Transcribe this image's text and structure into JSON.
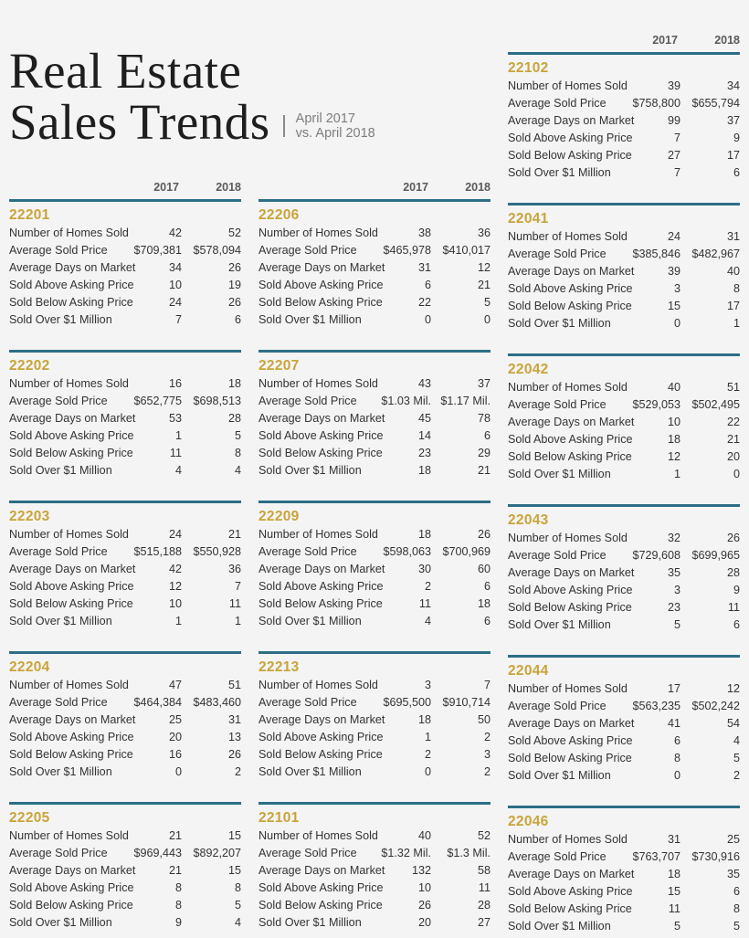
{
  "title": {
    "line1": "Real Estate",
    "line2": "Sales Trends",
    "subtitle_line1": "April 2017",
    "subtitle_line2": "vs. April 2018"
  },
  "year_headers": {
    "y2017": "2017",
    "y2018": "2018"
  },
  "row_labels": [
    "Number of Homes Sold",
    "Average Sold Price",
    "Average Days on Market",
    "Sold Above Asking Price",
    "Sold Below Asking Price",
    "Sold Over $1 Million"
  ],
  "colors": {
    "rule": "#2c6e86",
    "zip": "#c9a43a",
    "background": "#f4f4f4"
  },
  "columns": [
    {
      "zips": [
        {
          "zip": "22201",
          "rows": [
            {
              "label": "Number of Homes Sold",
              "v2017": "42",
              "v2018": "52"
            },
            {
              "label": "Average Sold Price",
              "v2017": "$709,381",
              "v2018": "$578,094"
            },
            {
              "label": "Average Days on Market",
              "v2017": "34",
              "v2018": "26"
            },
            {
              "label": "Sold Above Asking Price",
              "v2017": "10",
              "v2018": "19"
            },
            {
              "label": "Sold Below Asking Price",
              "v2017": "24",
              "v2018": "26"
            },
            {
              "label": "Sold Over $1 Million",
              "v2017": "7",
              "v2018": "6"
            }
          ]
        },
        {
          "zip": "22202",
          "rows": [
            {
              "label": "Number of Homes Sold",
              "v2017": "16",
              "v2018": "18"
            },
            {
              "label": "Average Sold Price",
              "v2017": "$652,775",
              "v2018": "$698,513"
            },
            {
              "label": "Average Days on Market",
              "v2017": "53",
              "v2018": "28"
            },
            {
              "label": "Sold Above Asking Price",
              "v2017": "1",
              "v2018": "5"
            },
            {
              "label": "Sold Below Asking Price",
              "v2017": "11",
              "v2018": "8"
            },
            {
              "label": "Sold Over $1 Million",
              "v2017": "4",
              "v2018": "4"
            }
          ]
        },
        {
          "zip": "22203",
          "rows": [
            {
              "label": "Number of Homes Sold",
              "v2017": "24",
              "v2018": "21"
            },
            {
              "label": "Average Sold Price",
              "v2017": "$515,188",
              "v2018": "$550,928"
            },
            {
              "label": "Average Days on Market",
              "v2017": "42",
              "v2018": "36"
            },
            {
              "label": "Sold Above Asking Price",
              "v2017": "12",
              "v2018": "7"
            },
            {
              "label": "Sold Below Asking Price",
              "v2017": "10",
              "v2018": "11"
            },
            {
              "label": "Sold Over $1 Million",
              "v2017": "1",
              "v2018": "1"
            }
          ]
        },
        {
          "zip": "22204",
          "rows": [
            {
              "label": "Number of Homes Sold",
              "v2017": "47",
              "v2018": "51"
            },
            {
              "label": "Average Sold Price",
              "v2017": "$464,384",
              "v2018": "$483,460"
            },
            {
              "label": "Average Days on Market",
              "v2017": "25",
              "v2018": "31"
            },
            {
              "label": "Sold Above Asking Price",
              "v2017": "20",
              "v2018": "13"
            },
            {
              "label": "Sold Below Asking Price",
              "v2017": "16",
              "v2018": "26"
            },
            {
              "label": "Sold Over $1 Million",
              "v2017": "0",
              "v2018": "2"
            }
          ]
        },
        {
          "zip": "22205",
          "rows": [
            {
              "label": "Number of Homes Sold",
              "v2017": "21",
              "v2018": "15"
            },
            {
              "label": "Average Sold Price",
              "v2017": "$969,443",
              "v2018": "$892,207"
            },
            {
              "label": "Average Days on Market",
              "v2017": "21",
              "v2018": "15"
            },
            {
              "label": "Sold Above Asking Price",
              "v2017": "8",
              "v2018": "8"
            },
            {
              "label": "Sold Below Asking Price",
              "v2017": "8",
              "v2018": "5"
            },
            {
              "label": "Sold Over $1 Million",
              "v2017": "9",
              "v2018": "4"
            }
          ]
        }
      ]
    },
    {
      "zips": [
        {
          "zip": "22206",
          "rows": [
            {
              "label": "Number of Homes Sold",
              "v2017": "38",
              "v2018": "36"
            },
            {
              "label": "Average Sold Price",
              "v2017": "$465,978",
              "v2018": "$410,017"
            },
            {
              "label": "Average Days on Market",
              "v2017": "31",
              "v2018": "12"
            },
            {
              "label": "Sold Above Asking Price",
              "v2017": "6",
              "v2018": "21"
            },
            {
              "label": "Sold Below Asking Price",
              "v2017": "22",
              "v2018": "5"
            },
            {
              "label": "Sold Over $1 Million",
              "v2017": "0",
              "v2018": "0"
            }
          ]
        },
        {
          "zip": "22207",
          "rows": [
            {
              "label": "Number of Homes Sold",
              "v2017": "43",
              "v2018": "37"
            },
            {
              "label": "Average Sold Price",
              "v2017": "$1.03 Mil.",
              "v2018": "$1.17 Mil."
            },
            {
              "label": "Average Days on Market",
              "v2017": "45",
              "v2018": "78"
            },
            {
              "label": "Sold Above Asking Price",
              "v2017": "14",
              "v2018": "6"
            },
            {
              "label": "Sold Below Asking Price",
              "v2017": "23",
              "v2018": "29"
            },
            {
              "label": "Sold Over $1 Million",
              "v2017": "18",
              "v2018": "21"
            }
          ]
        },
        {
          "zip": "22209",
          "rows": [
            {
              "label": "Number of Homes Sold",
              "v2017": "18",
              "v2018": "26"
            },
            {
              "label": "Average Sold Price",
              "v2017": "$598,063",
              "v2018": "$700,969"
            },
            {
              "label": "Average Days on Market",
              "v2017": "30",
              "v2018": "60"
            },
            {
              "label": "Sold Above Asking Price",
              "v2017": "2",
              "v2018": "6"
            },
            {
              "label": "Sold Below Asking Price",
              "v2017": "11",
              "v2018": "18"
            },
            {
              "label": "Sold Over $1 Million",
              "v2017": "4",
              "v2018": "6"
            }
          ]
        },
        {
          "zip": "22213",
          "rows": [
            {
              "label": "Number of Homes Sold",
              "v2017": "3",
              "v2018": "7"
            },
            {
              "label": "Average Sold Price",
              "v2017": "$695,500",
              "v2018": "$910,714"
            },
            {
              "label": "Average Days on Market",
              "v2017": "18",
              "v2018": "50"
            },
            {
              "label": "Sold Above Asking Price",
              "v2017": "1",
              "v2018": "2"
            },
            {
              "label": "Sold Below Asking Price",
              "v2017": "2",
              "v2018": "3"
            },
            {
              "label": "Sold Over $1 Million",
              "v2017": "0",
              "v2018": "2"
            }
          ]
        },
        {
          "zip": "22101",
          "rows": [
            {
              "label": "Number of Homes Sold",
              "v2017": "40",
              "v2018": "52"
            },
            {
              "label": "Average Sold Price",
              "v2017": "$1.32 Mil.",
              "v2018": "$1.3 Mil."
            },
            {
              "label": "Average Days on Market",
              "v2017": "132",
              "v2018": "58"
            },
            {
              "label": "Sold Above Asking Price",
              "v2017": "10",
              "v2018": "11"
            },
            {
              "label": "Sold Below Asking Price",
              "v2017": "26",
              "v2018": "28"
            },
            {
              "label": "Sold Over $1 Million",
              "v2017": "20",
              "v2018": "27"
            }
          ]
        }
      ]
    },
    {
      "zips": [
        {
          "zip": "22102",
          "rows": [
            {
              "label": "Number of Homes Sold",
              "v2017": "39",
              "v2018": "34"
            },
            {
              "label": "Average Sold Price",
              "v2017": "$758,800",
              "v2018": "$655,794"
            },
            {
              "label": "Average Days on Market",
              "v2017": "99",
              "v2018": "37"
            },
            {
              "label": "Sold Above Asking Price",
              "v2017": "7",
              "v2018": "9"
            },
            {
              "label": "Sold Below Asking Price",
              "v2017": "27",
              "v2018": "17"
            },
            {
              "label": "Sold Over $1 Million",
              "v2017": "7",
              "v2018": "6"
            }
          ]
        },
        {
          "zip": "22041",
          "rows": [
            {
              "label": "Number of Homes Sold",
              "v2017": "24",
              "v2018": "31"
            },
            {
              "label": "Average Sold Price",
              "v2017": "$385,846",
              "v2018": "$482,967"
            },
            {
              "label": "Average Days on Market",
              "v2017": "39",
              "v2018": "40"
            },
            {
              "label": "Sold Above Asking Price",
              "v2017": "3",
              "v2018": "8"
            },
            {
              "label": "Sold Below Asking Price",
              "v2017": "15",
              "v2018": "17"
            },
            {
              "label": "Sold Over $1 Million",
              "v2017": "0",
              "v2018": "1"
            }
          ]
        },
        {
          "zip": "22042",
          "rows": [
            {
              "label": "Number of Homes Sold",
              "v2017": "40",
              "v2018": "51"
            },
            {
              "label": "Average Sold Price",
              "v2017": "$529,053",
              "v2018": "$502,495"
            },
            {
              "label": "Average Days on Market",
              "v2017": "10",
              "v2018": "22"
            },
            {
              "label": "Sold Above Asking Price",
              "v2017": "18",
              "v2018": "21"
            },
            {
              "label": "Sold Below Asking Price",
              "v2017": "12",
              "v2018": "20"
            },
            {
              "label": "Sold Over $1 Million",
              "v2017": "1",
              "v2018": "0"
            }
          ]
        },
        {
          "zip": "22043",
          "rows": [
            {
              "label": "Number of Homes Sold",
              "v2017": "32",
              "v2018": "26"
            },
            {
              "label": "Average Sold Price",
              "v2017": "$729,608",
              "v2018": "$699,965"
            },
            {
              "label": "Average Days on Market",
              "v2017": "35",
              "v2018": "28"
            },
            {
              "label": "Sold Above Asking Price",
              "v2017": "3",
              "v2018": "9"
            },
            {
              "label": "Sold Below Asking Price",
              "v2017": "23",
              "v2018": "11"
            },
            {
              "label": "Sold Over $1 Million",
              "v2017": "5",
              "v2018": "6"
            }
          ]
        },
        {
          "zip": "22044",
          "rows": [
            {
              "label": "Number of Homes Sold",
              "v2017": "17",
              "v2018": "12"
            },
            {
              "label": "Average Sold Price",
              "v2017": "$563,235",
              "v2018": "$502,242"
            },
            {
              "label": "Average Days on Market",
              "v2017": "41",
              "v2018": "54"
            },
            {
              "label": "Sold Above Asking Price",
              "v2017": "6",
              "v2018": "4"
            },
            {
              "label": "Sold Below Asking Price",
              "v2017": "8",
              "v2018": "5"
            },
            {
              "label": "Sold Over $1 Million",
              "v2017": "0",
              "v2018": "2"
            }
          ]
        },
        {
          "zip": "22046",
          "rows": [
            {
              "label": "Number of Homes Sold",
              "v2017": "31",
              "v2018": "25"
            },
            {
              "label": "Average Sold Price",
              "v2017": "$763,707",
              "v2018": "$730,916"
            },
            {
              "label": "Average Days on Market",
              "v2017": "18",
              "v2018": "35"
            },
            {
              "label": "Sold Above Asking Price",
              "v2017": "15",
              "v2018": "6"
            },
            {
              "label": "Sold Below Asking Price",
              "v2017": "11",
              "v2018": "8"
            },
            {
              "label": "Sold Over $1 Million",
              "v2017": "5",
              "v2018": "5"
            }
          ]
        }
      ]
    }
  ]
}
